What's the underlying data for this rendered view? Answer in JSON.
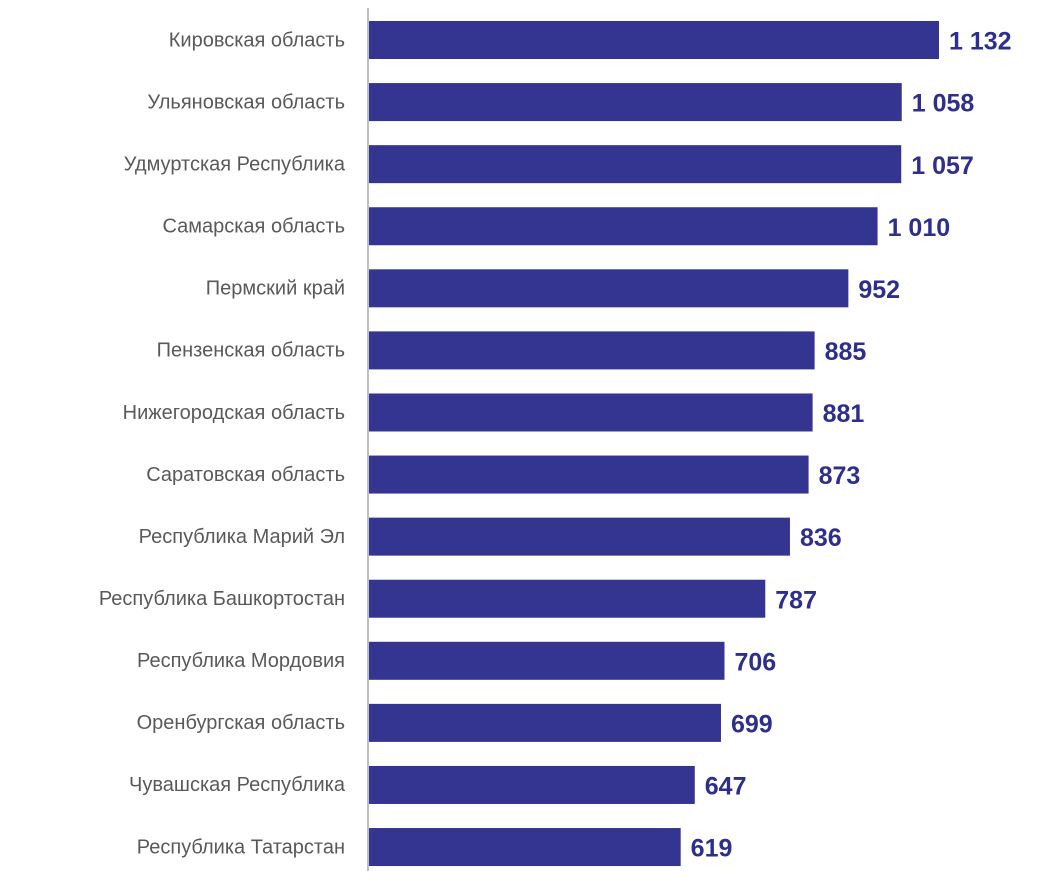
{
  "chart_data": {
    "type": "barh",
    "categories": [
      "Кировская область",
      "Ульяновская область",
      "Удмуртская Республика",
      "Самарская область",
      "Пермский край",
      "Пензенская область",
      "Нижегородская область",
      "Саратовская область",
      "Республика Марий Эл",
      "Республика Башкортостан",
      "Республика Мордовия",
      "Оренбургская область",
      "Чувашская Республика",
      "Республика Татарстан"
    ],
    "values": [
      1132,
      1058,
      1057,
      1010,
      952,
      885,
      881,
      873,
      836,
      787,
      706,
      699,
      647,
      619
    ],
    "value_labels": [
      "1 132",
      "1 058",
      "1 057",
      "1 010",
      "952",
      "885",
      "881",
      "873",
      "836",
      "787",
      "706",
      "699",
      "647",
      "619"
    ],
    "color": "#343491"
  }
}
